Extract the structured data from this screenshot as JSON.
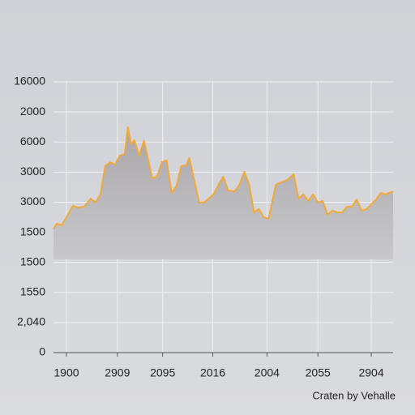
{
  "chart_data": {
    "type": "area",
    "caption": "Craten by Vehalle",
    "x": [
      0,
      0.4,
      1,
      1.6,
      2.4,
      3,
      3.8,
      4.6,
      5.2,
      5.8,
      6.4,
      7,
      7.6,
      8.2,
      8.8,
      9.2,
      9.6,
      10,
      10.6,
      11.2,
      11.6,
      12.2,
      12.8,
      13.4,
      14,
      14.6,
      15.2,
      15.8,
      16.4,
      16.8,
      17.4,
      18,
      18.6,
      19.2,
      19.8,
      20.4,
      21,
      21.6,
      22.4,
      23,
      23.6,
      24.2,
      24.8,
      25.4,
      26,
      26.6,
      27.5,
      28.1,
      28.9,
      29.7,
      30.3,
      30.9,
      31.5,
      32.1,
      32.7,
      33.3,
      33.9,
      34.5,
      35.1,
      35.7,
      36.3,
      36.9,
      37.5,
      38.1,
      38.7,
      39.3,
      39.9,
      40.5,
      41.1,
      42
    ],
    "values": [
      4.1,
      4.29,
      4.23,
      4.5,
      4.88,
      4.82,
      4.85,
      5.12,
      4.99,
      5.26,
      6.2,
      6.33,
      6.25,
      6.55,
      6.6,
      7.49,
      6.93,
      7.06,
      6.55,
      7.04,
      6.55,
      5.8,
      5.85,
      6.33,
      6.39,
      5.31,
      5.53,
      6.2,
      6.23,
      6.47,
      5.74,
      4.99,
      4.99,
      5.12,
      5.26,
      5.58,
      5.85,
      5.39,
      5.36,
      5.58,
      6.01,
      5.58,
      4.66,
      4.77,
      4.5,
      4.45,
      5.58,
      5.66,
      5.74,
      5.93,
      5.12,
      5.26,
      5.04,
      5.26,
      4.99,
      5.04,
      4.58,
      4.72,
      4.66,
      4.66,
      4.85,
      4.85,
      5.09,
      4.72,
      4.77,
      4.93,
      5.09,
      5.31,
      5.26,
      5.36
    ],
    "color": "#f2a93a",
    "xlim": [
      0,
      42
    ],
    "ylim": [
      0,
      9
    ],
    "xticks": [
      {
        "value": 1.6,
        "label": "1900"
      },
      {
        "value": 7.9,
        "label": "2909"
      },
      {
        "value": 13.5,
        "label": "2095"
      },
      {
        "value": 19.7,
        "label": "2016"
      },
      {
        "value": 26.4,
        "label": "2004"
      },
      {
        "value": 32.7,
        "label": "2055"
      },
      {
        "value": 39.3,
        "label": "2904"
      }
    ],
    "yticks": [
      {
        "value": 0,
        "label": "0"
      },
      {
        "value": 1,
        "label": "2,040"
      },
      {
        "value": 2,
        "label": "1550"
      },
      {
        "value": 3,
        "label": "1500"
      },
      {
        "value": 4,
        "label": "1500"
      },
      {
        "value": 5,
        "label": "3000"
      },
      {
        "value": 6,
        "label": "3000"
      },
      {
        "value": 7,
        "label": "6000"
      },
      {
        "value": 8,
        "label": "2000"
      },
      {
        "value": 9,
        "label": "16000"
      }
    ],
    "grid": true
  }
}
